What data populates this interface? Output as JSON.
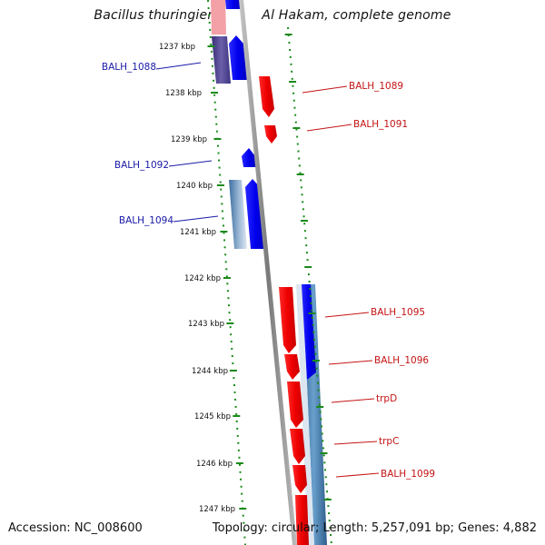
{
  "title": "Bacillus thuringiensis str. Al Hakam, complete genome",
  "footer": {
    "accession": "Accession: NC_008600",
    "summary": "Topology: circular; Length: 5,257,091 bp; Genes: 4,882"
  },
  "ruler": {
    "ticks": [
      "1237 kbp",
      "1238 kbp",
      "1239 kbp",
      "1240 kbp",
      "1241 kbp",
      "1242 kbp",
      "1243 kbp",
      "1244 kbp",
      "1245 kbp",
      "1246 kbp",
      "1247 kbp"
    ]
  },
  "genes": {
    "left_labels": [
      "BALH_1088",
      "BALH_1092",
      "BALH_1094"
    ],
    "right_labels": [
      "BALH_1089",
      "BALH_1091",
      "BALH_1095",
      "BALH_1096",
      "trpD",
      "trpC",
      "BALH_1099"
    ]
  },
  "colors": {
    "forward_strand": "#0000ff",
    "reverse_strand": "#ff0000",
    "left_label": "#1a1aa8",
    "right_label": "#c41414",
    "tick": "#1a8a1a",
    "backbone": "#888888"
  }
}
